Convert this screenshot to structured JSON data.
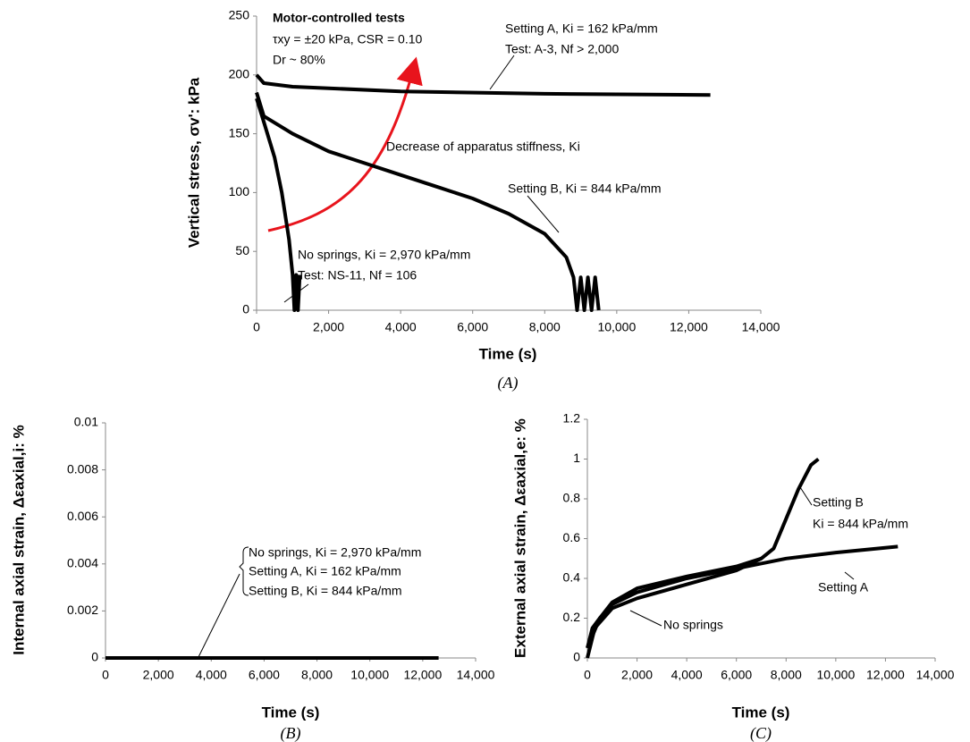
{
  "chart_data": [
    {
      "type": "line",
      "y_label": "Vertical stress, σv': kPa",
      "x_label": "Time (s)",
      "caption": "(A)",
      "xlim": [
        0,
        14000
      ],
      "ylim": [
        0,
        250
      ],
      "xticks": [
        0,
        {
          "value": 2000,
          "label": "2,000"
        },
        {
          "value": 4000,
          "label": "4,000"
        },
        {
          "value": 6000,
          "label": "6,000"
        },
        {
          "value": 8000,
          "label": "8,000"
        },
        {
          "value": 10000,
          "label": "10,000"
        },
        {
          "value": 12000,
          "label": "12,000"
        },
        {
          "value": 14000,
          "label": "14,000"
        }
      ],
      "yticks": [
        0,
        50,
        100,
        150,
        200,
        250
      ],
      "annotations": [
        "Motor-controlled tests",
        "τxy = ±20 kPa, CSR = 0.10",
        "Dr ~ 80%",
        "Setting A, Ki = 162 kPa/mm",
        "Test: A-3, Nf > 2,000",
        "Decrease of apparatus stiffness, Ki",
        "Setting B, Ki = 844 kPa/mm",
        "No springs, Ki = 2,970 kPa/mm",
        "Test: NS-11, Nf = 106"
      ],
      "series": [
        {
          "name": "Setting A",
          "color": "#000000",
          "x": [
            0,
            200,
            1000,
            4000,
            8000,
            12600
          ],
          "values": [
            200,
            193,
            190,
            186,
            184,
            183
          ]
        },
        {
          "name": "Setting B",
          "color": "#000000",
          "x": [
            0,
            200,
            1000,
            2000,
            3000,
            4000,
            5000,
            6000,
            7000,
            8000,
            8600,
            8800,
            8900,
            9000,
            9100,
            9200,
            9300,
            9400,
            9500
          ],
          "values": [
            185,
            165,
            150,
            135,
            125,
            115,
            105,
            95,
            82,
            65,
            45,
            28,
            0,
            28,
            0,
            28,
            0,
            28,
            0
          ]
        },
        {
          "name": "No springs",
          "color": "#000000",
          "x": [
            0,
            200,
            500,
            700,
            900,
            1000,
            1050,
            1100,
            1150,
            1200
          ],
          "values": [
            180,
            160,
            130,
            100,
            60,
            30,
            0,
            30,
            0,
            30
          ]
        }
      ]
    },
    {
      "type": "line",
      "y_label": "Internal axial strain, Δεaxial,i: %",
      "x_label": "Time (s)",
      "caption": "(B)",
      "xlim": [
        0,
        14000
      ],
      "ylim": [
        0,
        0.01
      ],
      "xticks": [
        0,
        {
          "value": 2000,
          "label": "2,000"
        },
        {
          "value": 4000,
          "label": "4,000"
        },
        {
          "value": 6000,
          "label": "6,000"
        },
        {
          "value": 8000,
          "label": "8,000"
        },
        {
          "value": 10000,
          "label": "10,000"
        },
        {
          "value": 12000,
          "label": "12,000"
        },
        {
          "value": 14000,
          "label": "14,000"
        }
      ],
      "yticks": [
        0,
        0.002,
        0.004,
        0.006,
        0.008,
        0.01
      ],
      "annotations": [],
      "series": [
        {
          "name": "No springs, Ki = 2,970 kPa/mm",
          "color": "#000000",
          "x": [
            0,
            1100
          ],
          "values": [
            0,
            0
          ]
        },
        {
          "name": "Setting A, Ki = 162 kPa/mm",
          "color": "#000000",
          "x": [
            0,
            12600
          ],
          "values": [
            0,
            0
          ]
        },
        {
          "name": "Setting B, Ki = 844 kPa/mm",
          "color": "#000000",
          "x": [
            0,
            9500
          ],
          "values": [
            0,
            0
          ]
        }
      ]
    },
    {
      "type": "line",
      "y_label": "External axial strain, Δεaxial,e: %",
      "x_label": "Time (s)",
      "caption": "(C)",
      "xlim": [
        0,
        14000
      ],
      "ylim": [
        0,
        1.2
      ],
      "xticks": [
        0,
        {
          "value": 2000,
          "label": "2,000"
        },
        {
          "value": 4000,
          "label": "4,000"
        },
        {
          "value": 6000,
          "label": "6,000"
        },
        {
          "value": 8000,
          "label": "8,000"
        },
        {
          "value": 10000,
          "label": "10,000"
        },
        {
          "value": 12000,
          "label": "12,000"
        },
        {
          "value": 14000,
          "label": "14,000"
        }
      ],
      "yticks": [
        0,
        0.2,
        0.4,
        0.6,
        0.8,
        1,
        1.2
      ],
      "annotations": [
        "Ki = 844 kPa/mm"
      ],
      "series": [
        {
          "name": "Setting A",
          "color": "#000000",
          "x": [
            0,
            200,
            500,
            1000,
            2000,
            4000,
            6000,
            8000,
            10000,
            12500
          ],
          "values": [
            0.05,
            0.15,
            0.2,
            0.27,
            0.33,
            0.4,
            0.45,
            0.5,
            0.53,
            0.56
          ]
        },
        {
          "name": "Setting B",
          "color": "#000000",
          "x": [
            0,
            300,
            1000,
            2000,
            4000,
            6000,
            7000,
            7500,
            8000,
            8500,
            9000,
            9300
          ],
          "values": [
            0,
            0.15,
            0.25,
            0.3,
            0.37,
            0.44,
            0.5,
            0.55,
            0.7,
            0.85,
            0.97,
            1.0
          ]
        },
        {
          "name": "No springs",
          "color": "#000000",
          "x": [
            0,
            500,
            1000,
            2000,
            4000,
            6000,
            7000
          ],
          "values": [
            0.05,
            0.2,
            0.28,
            0.35,
            0.41,
            0.46,
            0.5
          ]
        }
      ]
    }
  ]
}
